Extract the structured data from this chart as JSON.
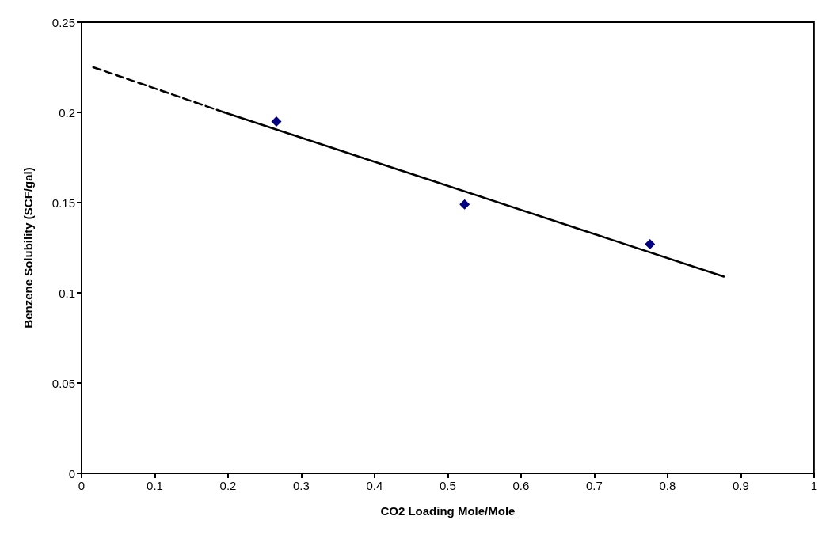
{
  "chart_data": {
    "type": "scatter",
    "xlabel": "CO2 Loading Mole/Mole",
    "ylabel": "Benzene Solubility (SCF/gal)",
    "xlim": [
      0,
      1
    ],
    "xticks": [
      0,
      0.1,
      0.2,
      0.3,
      0.4,
      0.5,
      0.6,
      0.7,
      0.8,
      0.9,
      1
    ],
    "ylim": [
      0,
      0.25
    ],
    "yticks": [
      0,
      0.05,
      0.1,
      0.15,
      0.2,
      0.25
    ],
    "grid": false,
    "series": [
      {
        "color": "#000080",
        "marker": "diamond",
        "x": [
          0.266,
          0.523,
          0.776
        ],
        "values": [
          0.195,
          0.149,
          0.127
        ]
      },
      {
        "type": "line",
        "color": "#000000",
        "line_style": "dashed",
        "marker": "none",
        "x": [
          0.016,
          0.195
        ],
        "values": [
          0.225,
          0.2
        ]
      },
      {
        "type": "line",
        "color": "#000000",
        "line_style": "solid",
        "marker": "none",
        "x": [
          0.195,
          0.877
        ],
        "values": [
          0.2,
          0.109
        ]
      }
    ]
  }
}
